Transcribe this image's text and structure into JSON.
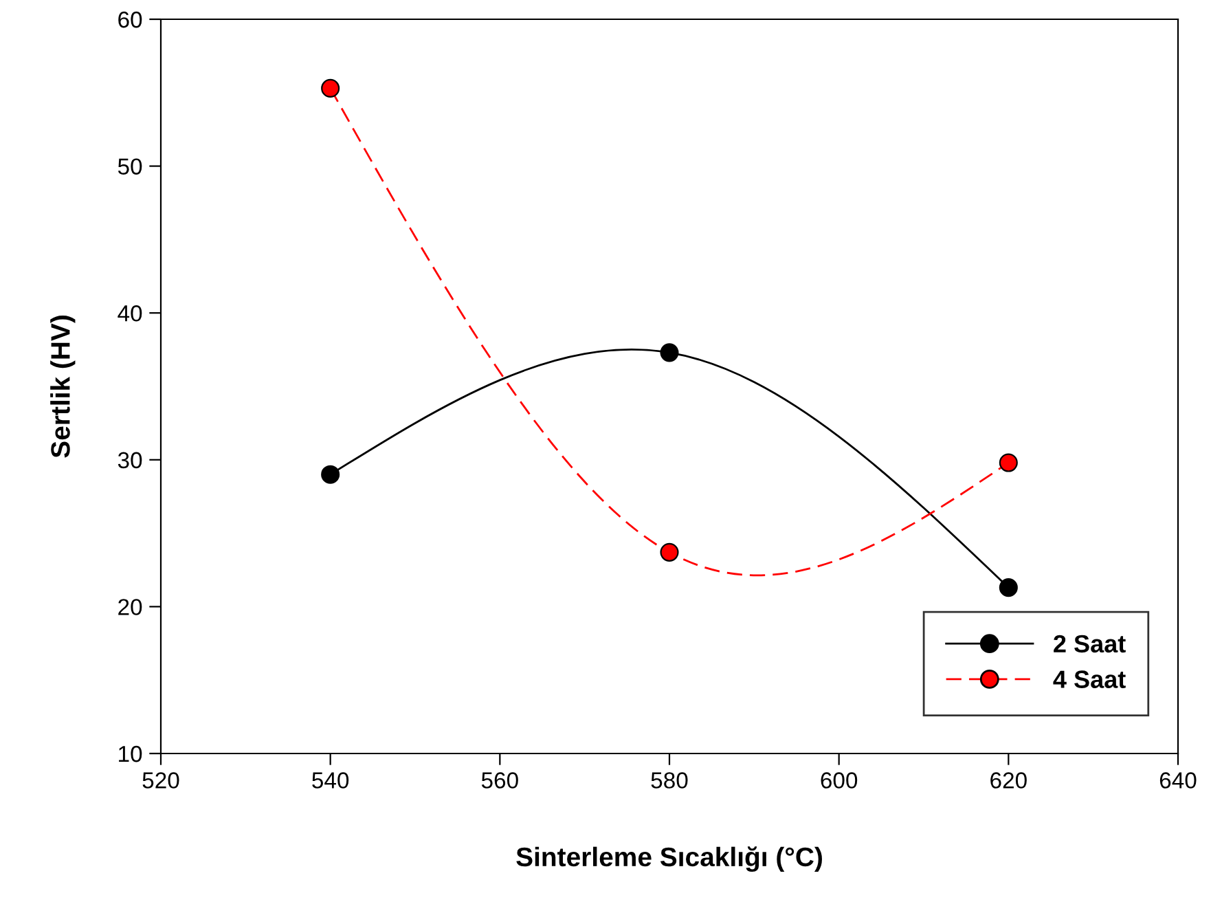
{
  "chart_data": {
    "type": "line",
    "xlabel": "Sinterleme Sıcaklığı (°C)",
    "ylabel": "Sertlik (HV)",
    "x": [
      540,
      580,
      620
    ],
    "series": [
      {
        "name": "2 Saat",
        "color": "#000000",
        "values": [
          29.0,
          37.3,
          21.3
        ],
        "line_style": "solid"
      },
      {
        "name": "4 Saat",
        "color": "#ff0000",
        "values": [
          55.3,
          23.7,
          29.8
        ],
        "line_style": "dashed"
      }
    ],
    "xlim": [
      520,
      640
    ],
    "xticks": [
      520,
      540,
      560,
      580,
      600,
      620,
      640
    ],
    "ylim": [
      10,
      60
    ],
    "yticks": [
      10,
      20,
      30,
      40,
      50,
      60
    ],
    "marker": "circle",
    "grid": false,
    "legend": "bottom right"
  }
}
